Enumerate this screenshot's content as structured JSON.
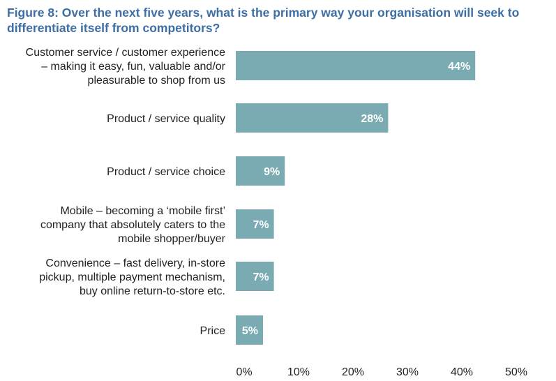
{
  "title": "Figure 8: Over the next five years, what is the primary way your organisation will seek to differentiate itself from competitors?",
  "colors": {
    "title": "#3d6fa5",
    "bar": "#7aabb3",
    "bar_label": "#ffffff",
    "text": "#222222"
  },
  "chart_data": {
    "type": "bar",
    "orientation": "horizontal",
    "categories": [
      "Customer service / customer experience – making it easy, fun, valuable and/or pleasurable to shop from us",
      "Product / service quality",
      "Product / service choice",
      "Mobile – becoming a ‘mobile first’ company that absolutely caters to the mobile shopper/buyer",
      "Convenience – fast delivery, in-store pickup, multiple payment mechanism, buy online return-to-store etc.",
      "Price"
    ],
    "category_lines": [
      [
        "Customer service / customer experience",
        "– making it easy, fun, valuable and/or",
        "pleasurable to shop from us"
      ],
      [
        "Product / service quality"
      ],
      [
        "Product / service choice"
      ],
      [
        "Mobile – becoming a ‘mobile first’",
        "company that absolutely caters to the",
        "mobile shopper/buyer"
      ],
      [
        "Convenience – fast delivery, in-store",
        "pickup, multiple payment mechanism,",
        "buy online return-to-store etc."
      ],
      [
        "Price"
      ]
    ],
    "values": [
      44,
      28,
      9,
      7,
      7,
      5
    ],
    "value_labels": [
      "44%",
      "28%",
      "9%",
      "7%",
      "7%",
      "5%"
    ],
    "xlim": [
      0,
      50
    ],
    "xticks": [
      0,
      10,
      20,
      30,
      40,
      50
    ],
    "xtick_labels": [
      "0%",
      "10%",
      "20%",
      "30%",
      "40%",
      "50%"
    ],
    "grid": false,
    "legend": "none"
  }
}
